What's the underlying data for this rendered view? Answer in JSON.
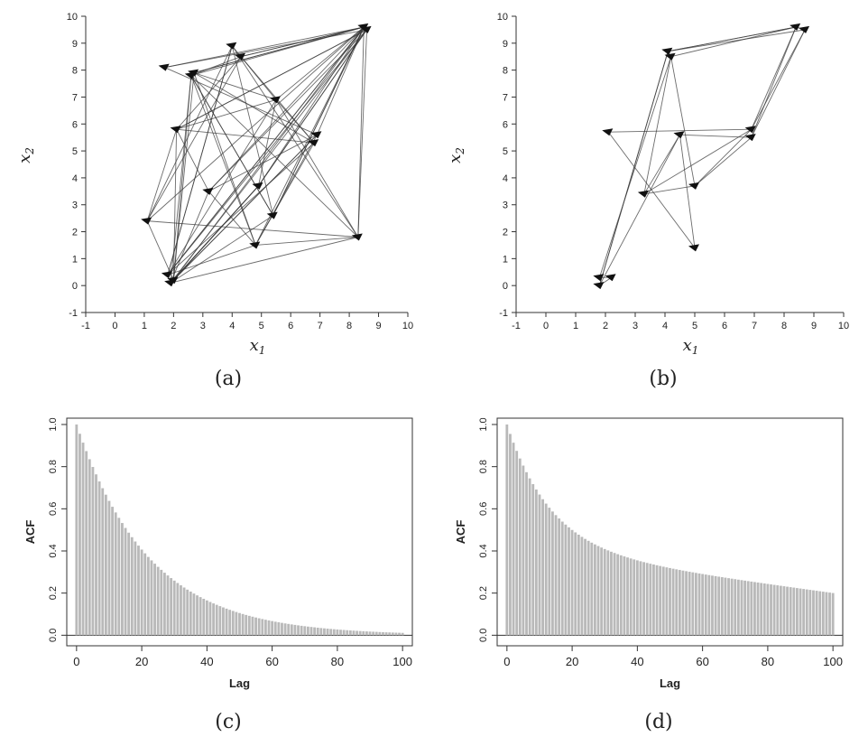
{
  "figure": {
    "panels": [
      {
        "id": "a",
        "caption": "(a)"
      },
      {
        "id": "b",
        "caption": "(b)"
      },
      {
        "id": "c",
        "caption": "(c)"
      },
      {
        "id": "d",
        "caption": "(d)"
      }
    ]
  },
  "chart_data": [
    {
      "panel": "a",
      "type": "line",
      "xlabel": "x",
      "xlabel_sub": "1",
      "ylabel": "x",
      "ylabel_sub": "2",
      "xlim": [
        -1,
        10
      ],
      "ylim": [
        -1,
        10
      ],
      "xticks": [
        -1,
        0,
        1,
        2,
        3,
        4,
        5,
        6,
        7,
        8,
        9,
        10
      ],
      "yticks": [
        -1,
        0,
        1,
        2,
        3,
        4,
        5,
        6,
        7,
        8,
        9,
        10
      ],
      "points": [
        [
          1.7,
          8.1
        ],
        [
          2.6,
          7.8
        ],
        [
          4.0,
          8.9
        ],
        [
          4.3,
          8.5
        ],
        [
          8.5,
          9.6
        ],
        [
          2.1,
          5.8
        ],
        [
          5.5,
          6.9
        ],
        [
          6.9,
          5.6
        ],
        [
          1.1,
          2.4
        ],
        [
          3.2,
          3.5
        ],
        [
          4.9,
          3.7
        ],
        [
          5.4,
          2.6
        ],
        [
          4.8,
          1.5
        ],
        [
          8.3,
          1.8
        ],
        [
          1.8,
          0.4
        ],
        [
          2.0,
          0.2
        ],
        [
          8.6,
          9.5
        ],
        [
          6.8,
          5.3
        ],
        [
          1.9,
          0.1
        ],
        [
          2.7,
          7.9
        ]
      ],
      "path": [
        0,
        4,
        1,
        15,
        5,
        6,
        4,
        14,
        2,
        8,
        3,
        4,
        7,
        9,
        18,
        10,
        4,
        11,
        1,
        12,
        13,
        4,
        19,
        17,
        5,
        16,
        14,
        2,
        6,
        10,
        15,
        7,
        12,
        4,
        8,
        13,
        16,
        18,
        11,
        1,
        3,
        5,
        9,
        4,
        14,
        6,
        17,
        12,
        19,
        15,
        10,
        16,
        0,
        7,
        18,
        13,
        2,
        11,
        4,
        3,
        17,
        14,
        12,
        9,
        16,
        5,
        8,
        15,
        4,
        19,
        6,
        13,
        1,
        18,
        10,
        16
      ]
    },
    {
      "panel": "b",
      "type": "line",
      "xlabel": "x",
      "xlabel_sub": "1",
      "ylabel": "x",
      "ylabel_sub": "2",
      "xlim": [
        -1,
        10
      ],
      "ylim": [
        -1,
        10
      ],
      "xticks": [
        -1,
        0,
        1,
        2,
        3,
        4,
        5,
        6,
        7,
        8,
        9,
        10
      ],
      "yticks": [
        -1,
        0,
        1,
        2,
        3,
        4,
        5,
        6,
        7,
        8,
        9,
        10
      ],
      "points": [
        [
          4.1,
          8.7
        ],
        [
          4.2,
          8.5
        ],
        [
          8.4,
          9.6
        ],
        [
          8.7,
          9.5
        ],
        [
          6.9,
          5.8
        ],
        [
          6.9,
          5.5
        ],
        [
          4.5,
          5.6
        ],
        [
          5.0,
          3.7
        ],
        [
          3.3,
          3.4
        ],
        [
          2.1,
          5.7
        ],
        [
          5.0,
          1.4
        ],
        [
          1.8,
          0.3
        ],
        [
          2.2,
          0.3
        ],
        [
          1.8,
          0.0
        ]
      ],
      "path": [
        0,
        2,
        3,
        5,
        7,
        8,
        6,
        10,
        9,
        4,
        8,
        1,
        11,
        12,
        13,
        0,
        3,
        4,
        7,
        1,
        2,
        5,
        6,
        13,
        0,
        2,
        4
      ]
    },
    {
      "panel": "c",
      "type": "bar",
      "xlabel": "Lag",
      "ylabel": "ACF",
      "xlim": [
        -3,
        103
      ],
      "ylim": [
        -0.05,
        1.03
      ],
      "xticks": [
        0,
        20,
        40,
        60,
        80,
        100
      ],
      "yticks": [
        0.0,
        0.2,
        0.4,
        0.6,
        0.8,
        1.0
      ],
      "ytick_labels": [
        "0.0",
        "0.2",
        "0.4",
        "0.6",
        "0.8",
        "1.0"
      ],
      "lags": [
        0,
        100
      ],
      "acf_model": "exponential",
      "acf_rate": 0.045,
      "acf_floor": 0.01
    },
    {
      "panel": "d",
      "type": "bar",
      "xlabel": "Lag",
      "ylabel": "ACF",
      "xlim": [
        -3,
        103
      ],
      "ylim": [
        -0.05,
        1.03
      ],
      "xticks": [
        0,
        20,
        40,
        60,
        80,
        100
      ],
      "yticks": [
        0.0,
        0.2,
        0.4,
        0.6,
        0.8,
        1.0
      ],
      "ytick_labels": [
        "0.0",
        "0.2",
        "0.4",
        "0.6",
        "0.8",
        "1.0"
      ],
      "lags": [
        0,
        100
      ],
      "acf_model": "decay-to-plateau",
      "acf_rate": 0.075,
      "acf_plateau": 0.41,
      "acf_slope": 0.0021
    }
  ],
  "colors": {
    "bar_fill": "#b9b9b9",
    "line_stroke": "#3a3a3a",
    "marker": "#111111"
  }
}
